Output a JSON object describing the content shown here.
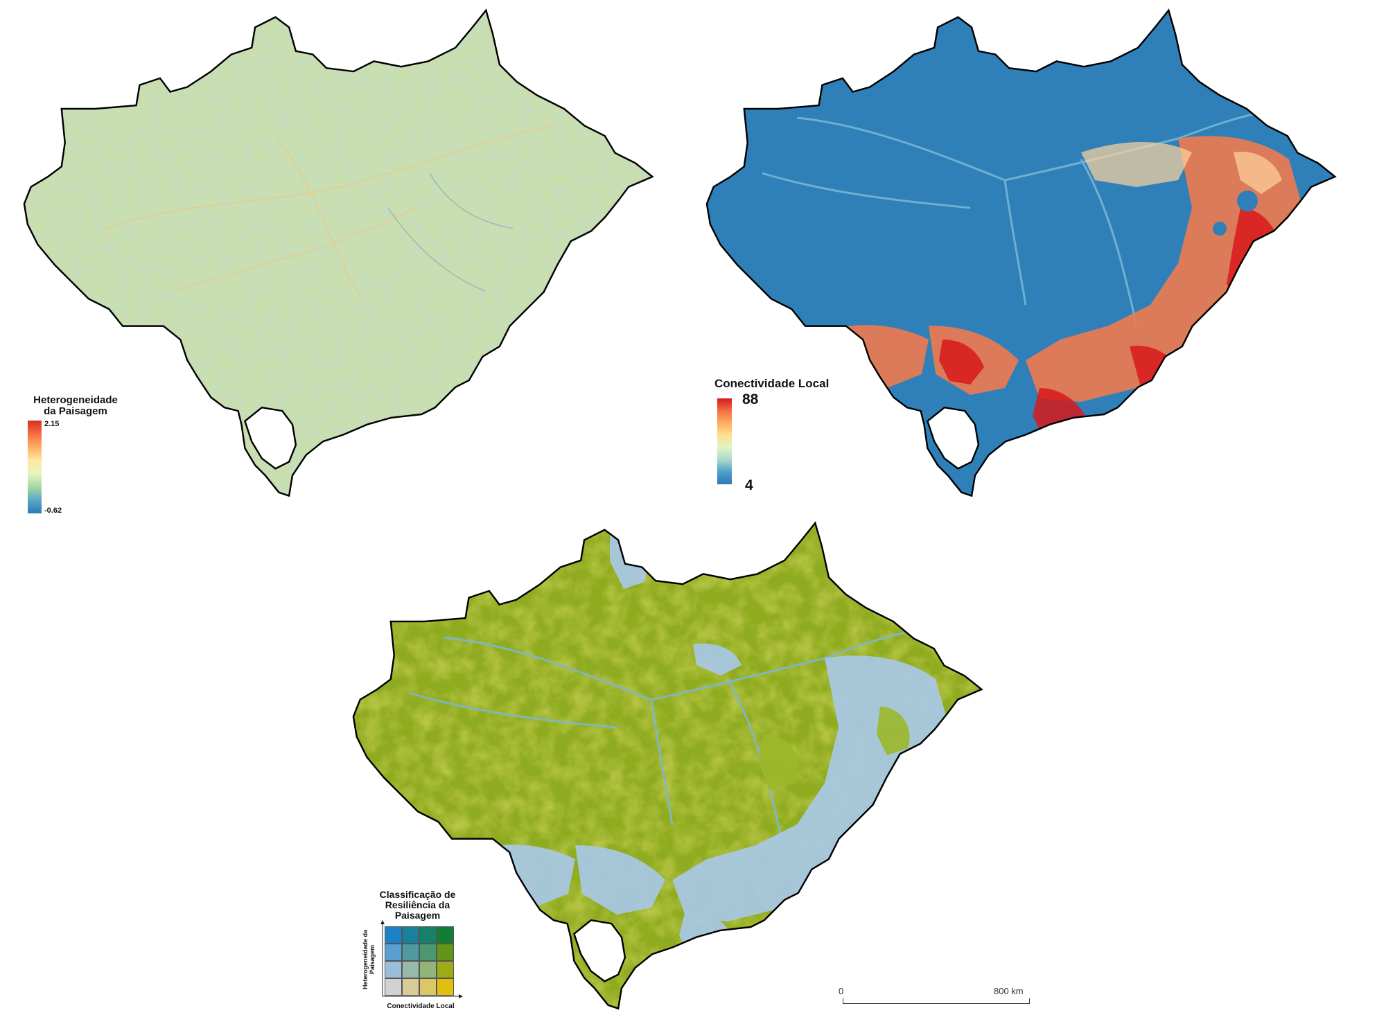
{
  "map_heterogeneity": {
    "legend_title_line1": "Heterogeneidade",
    "legend_title_line2": "da Paisagem",
    "max_label": "2.15",
    "min_label": "-0.62",
    "colors": {
      "high": "#d7301f",
      "mid": "#fee8a0",
      "low": "#2c7bb6",
      "fill": "#c9dfae"
    }
  },
  "map_connectivity": {
    "legend_title": "Conectividade Local",
    "max_label": "88",
    "min_label": "4",
    "colors": {
      "high": "#d7191c",
      "low": "#2c7bb6",
      "fill": "#2f80b9"
    }
  },
  "map_resilience": {
    "legend_title_line1": "Classificação de",
    "legend_title_line2": "Resiliência da",
    "legend_title_line3": "Paisagem",
    "y_axis_label": "Heterogeneidade da Paisagem",
    "x_axis_label": "Conectividade Local",
    "bivariate_colors": [
      [
        "#1b82c9",
        "#18819b",
        "#16806a",
        "#127e33"
      ],
      [
        "#58a0d2",
        "#4f9aa1",
        "#4c9671",
        "#62951a"
      ],
      [
        "#98bed9",
        "#98b8a8",
        "#93b478",
        "#9eaa17"
      ],
      [
        "#d2d2d2",
        "#d8cc9a",
        "#dac766",
        "#e0bf10"
      ]
    ],
    "colors": {
      "fill": "#8fab1f",
      "light": "#a8c8e6"
    }
  },
  "scale_bar": {
    "start_label": "0",
    "end_label": "800 km"
  }
}
